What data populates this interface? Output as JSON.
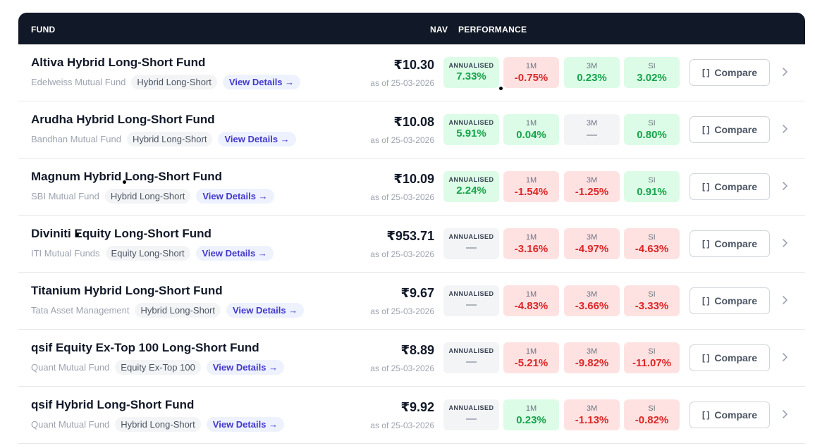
{
  "header": {
    "fund": "FUND",
    "nav": "NAV",
    "performance": "PERFORMANCE"
  },
  "view_label": "View Details →",
  "compare_label": "Compare",
  "annualised_label": "ANNUALISED",
  "colors": {
    "header_bg": "#111827",
    "positive": "#16a34a",
    "negative": "#dc2626",
    "link": "#4338ca"
  },
  "rows": [
    {
      "name": "Altiva Hybrid Long-Short Fund",
      "amc": "Edelweiss Mutual Fund",
      "category": "Hybrid Long-Short",
      "nav": "₹10.30",
      "as_of": "as of 25-03-2026",
      "annualised": "7.33%",
      "annualised_tone": "pos",
      "cells": [
        {
          "label": "1M",
          "value": "-0.75%",
          "tone": "neg"
        },
        {
          "label": "3M",
          "value": "0.23%",
          "tone": "pos"
        },
        {
          "label": "SI",
          "value": "3.02%",
          "tone": "pos"
        }
      ]
    },
    {
      "name": "Arudha Hybrid Long-Short Fund",
      "amc": "Bandhan Mutual Fund",
      "category": "Hybrid Long-Short",
      "nav": "₹10.08",
      "as_of": "as of 25-03-2026",
      "annualised": "5.91%",
      "annualised_tone": "pos",
      "cells": [
        {
          "label": "1M",
          "value": "0.04%",
          "tone": "pos"
        },
        {
          "label": "3M",
          "value": "—",
          "tone": "neu"
        },
        {
          "label": "SI",
          "value": "0.80%",
          "tone": "pos"
        }
      ]
    },
    {
      "name": "Magnum Hybrid Long-Short Fund",
      "amc": "SBI Mutual Fund",
      "category": "Hybrid Long-Short",
      "nav": "₹10.09",
      "as_of": "as of 25-03-2026",
      "annualised": "2.24%",
      "annualised_tone": "pos",
      "cells": [
        {
          "label": "1M",
          "value": "-1.54%",
          "tone": "neg"
        },
        {
          "label": "3M",
          "value": "-1.25%",
          "tone": "neg"
        },
        {
          "label": "SI",
          "value": "0.91%",
          "tone": "pos"
        }
      ]
    },
    {
      "name": "Diviniti Equity Long-Short Fund",
      "amc": "ITI Mutual Funds",
      "category": "Equity Long-Short",
      "nav": "₹953.71",
      "as_of": "as of 25-03-2026",
      "annualised": "—",
      "annualised_tone": "neu",
      "cells": [
        {
          "label": "1M",
          "value": "-3.16%",
          "tone": "neg"
        },
        {
          "label": "3M",
          "value": "-4.97%",
          "tone": "neg"
        },
        {
          "label": "SI",
          "value": "-4.63%",
          "tone": "neg"
        }
      ]
    },
    {
      "name": "Titanium Hybrid Long-Short Fund",
      "amc": "Tata Asset Management",
      "category": "Hybrid Long-Short",
      "nav": "₹9.67",
      "as_of": "as of 25-03-2026",
      "annualised": "—",
      "annualised_tone": "neu",
      "cells": [
        {
          "label": "1M",
          "value": "-4.83%",
          "tone": "neg"
        },
        {
          "label": "3M",
          "value": "-3.66%",
          "tone": "neg"
        },
        {
          "label": "SI",
          "value": "-3.33%",
          "tone": "neg"
        }
      ]
    },
    {
      "name": "qsif Equity Ex-Top 100 Long-Short Fund",
      "amc": "Quant Mutual Fund",
      "category": "Equity Ex-Top 100",
      "nav": "₹8.89",
      "as_of": "as of 25-03-2026",
      "annualised": "—",
      "annualised_tone": "neu",
      "cells": [
        {
          "label": "1M",
          "value": "-5.21%",
          "tone": "neg"
        },
        {
          "label": "3M",
          "value": "-9.82%",
          "tone": "neg"
        },
        {
          "label": "SI",
          "value": "-11.07%",
          "tone": "neg"
        }
      ]
    },
    {
      "name": "qsif Hybrid Long-Short Fund",
      "amc": "Quant Mutual Fund",
      "category": "Hybrid Long-Short",
      "nav": "₹9.92",
      "as_of": "as of 25-03-2026",
      "annualised": "—",
      "annualised_tone": "neu",
      "cells": [
        {
          "label": "1M",
          "value": "0.23%",
          "tone": "pos"
        },
        {
          "label": "3M",
          "value": "-1.13%",
          "tone": "neg"
        },
        {
          "label": "SI",
          "value": "-0.82%",
          "tone": "neg"
        }
      ]
    }
  ]
}
